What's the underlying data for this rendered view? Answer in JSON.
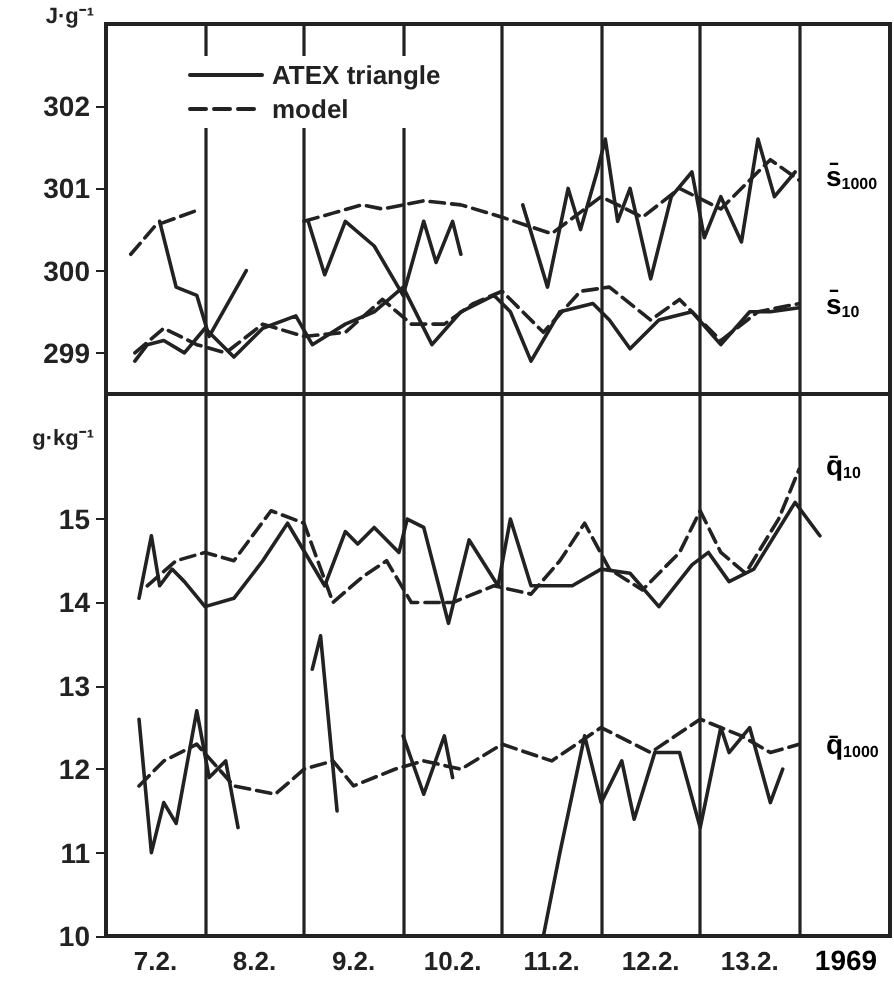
{
  "chart_data": [
    {
      "type": "line",
      "ylabel": "J·g⁻¹",
      "xlim": [
        "1969-02-07T00:00",
        "1969-02-14T22:00"
      ],
      "ylim": [
        298.5,
        303
      ],
      "yticks": [
        299,
        300,
        301,
        302
      ],
      "tick_labels": "y",
      "legend": "top left",
      "ref_lines": [
        {
          "axis": "x",
          "value": "1969-02-08"
        },
        {
          "axis": "x",
          "value": "1969-02-09"
        },
        {
          "axis": "x",
          "value": "1969-02-10"
        },
        {
          "axis": "x",
          "value": "1969-02-11"
        },
        {
          "axis": "x",
          "value": "1969-02-12"
        },
        {
          "axis": "x",
          "value": "1969-02-13"
        },
        {
          "axis": "x",
          "value": "1969-02-14"
        }
      ],
      "annotations": [
        "s̄$_{1000}$",
        "s̄$_{10}$"
      ],
      "series": [
        {
          "name": "ATEX triangle",
          "color": "#222222",
          "line_style": "solid",
          "x": [
            "1969-02-07T13:00",
            "1969-02-07T17:00",
            "1969-02-07T22:00",
            "1969-02-08T01:00",
            "1969-02-08T10:00",
            "1969-02-08T17:00",
            "1969-02-09T01:00",
            "1969-02-09T05:00",
            "1969-02-09T10:00",
            "1969-02-09T17:00",
            "1969-02-10T00:00",
            "1969-02-10T05:00",
            "1969-02-10T08:00",
            "1969-02-10T12:00",
            "1969-02-10T14:00",
            "1969-02-10T22:00",
            "1969-02-11T05:00",
            "1969-02-11T11:00",
            "1969-02-11T16:00",
            "1969-02-11T19:00",
            "1969-02-11T23:00",
            "1969-02-12T01:00",
            "1969-02-12T04:00",
            "1969-02-12T07:00",
            "1969-02-12T12:00",
            "1969-02-12T17:00",
            "1969-02-12T22:00",
            "1969-02-13T01:00",
            "1969-02-13T05:00",
            "1969-02-13T10:00",
            "1969-02-13T14:00",
            "1969-02-13T18:00",
            "1969-02-13T23:00"
          ],
          "values": [
            300.6,
            299.8,
            299.7,
            299.2,
            300.0,
            null,
            300.6,
            299.95,
            300.6,
            300.3,
            299.7,
            300.6,
            300.1,
            300.6,
            300.2,
            null,
            300.8,
            299.8,
            301.0,
            300.5,
            301.2,
            301.6,
            300.6,
            301.0,
            299.9,
            300.9,
            301.2,
            300.4,
            300.9,
            300.35,
            301.6,
            300.9,
            301.2
          ]
        },
        {
          "name": "model",
          "color": "#222222",
          "line_style": "dashed",
          "x": [
            "1969-02-07T06:00",
            "1969-02-07T12:00",
            "1969-02-07T23:00",
            "1969-02-08T12:00",
            "1969-02-09T00:00",
            "1969-02-09T07:00",
            "1969-02-09T14:00",
            "1969-02-09T19:00",
            "1969-02-10T05:00",
            "1969-02-10T14:00",
            "1969-02-11T00:00",
            "1969-02-11T12:00",
            "1969-02-12T00:00",
            "1969-02-12T10:00",
            "1969-02-12T19:00",
            "1969-02-13T05:00",
            "1969-02-13T17:00",
            "1969-02-14T00:00"
          ],
          "values": [
            300.2,
            300.55,
            300.75,
            null,
            300.6,
            300.7,
            300.8,
            300.75,
            300.85,
            300.8,
            300.65,
            300.45,
            300.9,
            300.65,
            301.0,
            300.75,
            301.35,
            301.1
          ]
        },
        {
          "color": "#222222",
          "line_style": "solid",
          "x": [
            "1969-02-07T07:00",
            "1969-02-07T10:00",
            "1969-02-07T14:00",
            "1969-02-07T19:00",
            "1969-02-08T00:00",
            "1969-02-08T07:00",
            "1969-02-08T14:00",
            "1969-02-08T22:00",
            "1969-02-09T02:00",
            "1969-02-09T10:00",
            "1969-02-09T17:00",
            "1969-02-10T00:00",
            "1969-02-10T07:00",
            "1969-02-10T14:00",
            "1969-02-10T22:00",
            "1969-02-11T02:00",
            "1969-02-11T07:00",
            "1969-02-11T14:00",
            "1969-02-11T22:00",
            "1969-02-12T02:00",
            "1969-02-12T07:00",
            "1969-02-12T14:00",
            "1969-02-12T22:00",
            "1969-02-13T05:00",
            "1969-02-13T12:00",
            "1969-02-13T17:00",
            "1969-02-14T00:00"
          ],
          "values": [
            298.9,
            299.1,
            299.15,
            299.0,
            299.3,
            298.95,
            299.3,
            299.45,
            299.1,
            299.35,
            299.5,
            299.8,
            299.1,
            299.5,
            299.7,
            299.5,
            298.9,
            299.5,
            299.6,
            299.4,
            299.05,
            299.4,
            299.5,
            299.1,
            299.5,
            299.5,
            299.55
          ]
        },
        {
          "color": "#222222",
          "line_style": "dashed",
          "x": [
            "1969-02-07T07:00",
            "1969-02-07T14:00",
            "1969-02-07T22:00",
            "1969-02-08T05:00",
            "1969-02-08T14:00",
            "1969-02-09T00:00",
            "1969-02-09T10:00",
            "1969-02-09T19:00",
            "1969-02-10T02:00",
            "1969-02-10T10:00",
            "1969-02-10T17:00",
            "1969-02-11T00:00",
            "1969-02-11T10:00",
            "1969-02-11T19:00",
            "1969-02-12T02:00",
            "1969-02-12T12:00",
            "1969-02-12T19:00",
            "1969-02-13T05:00",
            "1969-02-13T14:00",
            "1969-02-14T00:00"
          ],
          "values": [
            299.0,
            299.3,
            299.1,
            299.0,
            299.35,
            299.2,
            299.25,
            299.65,
            299.35,
            299.35,
            299.6,
            299.75,
            299.25,
            299.75,
            299.8,
            299.4,
            299.65,
            299.15,
            299.5,
            299.6
          ]
        }
      ]
    },
    {
      "type": "line",
      "ylabel": "g·kg⁻¹",
      "xlim": [
        "1969-02-07T00:00",
        "1969-02-14T22:00"
      ],
      "ylim": [
        10,
        16.5
      ],
      "yticks": [
        10,
        11,
        12,
        13,
        14,
        15
      ],
      "xticks": [
        {
          "value": "1969-02-07T12:00",
          "label": "7.2."
        },
        {
          "value": "1969-02-08T12:00",
          "label": "8.2."
        },
        {
          "value": "1969-02-09T12:00",
          "label": "9.2."
        },
        {
          "value": "1969-02-10T12:00",
          "label": "10.2."
        },
        {
          "value": "1969-02-11T12:00",
          "label": "11.2."
        },
        {
          "value": "1969-02-12T12:00",
          "label": "12.2."
        },
        {
          "value": "1969-02-13T12:00",
          "label": "13.2."
        }
      ],
      "ref_lines": [
        {
          "axis": "x",
          "value": "1969-02-08"
        },
        {
          "axis": "x",
          "value": "1969-02-09"
        },
        {
          "axis": "x",
          "value": "1969-02-10"
        },
        {
          "axis": "x",
          "value": "1969-02-11"
        },
        {
          "axis": "x",
          "value": "1969-02-12"
        },
        {
          "axis": "x",
          "value": "1969-02-13"
        },
        {
          "axis": "x",
          "value": "1969-02-14"
        }
      ],
      "annotations": [
        "q̄$_{10}$",
        "q̄$_{1000}$",
        "1969"
      ],
      "series": [
        {
          "color": "#222222",
          "line_style": "solid",
          "x": [
            "1969-02-07T08:00",
            "1969-02-07T11:00",
            "1969-02-07T13:00",
            "1969-02-07T16:00",
            "1969-02-07T19:00",
            "1969-02-08T00:00",
            "1969-02-08T07:00",
            "1969-02-08T14:00",
            "1969-02-08T20:00",
            "1969-02-09T05:00",
            "1969-02-09T10:00",
            "1969-02-09T13:00",
            "1969-02-09T17:00",
            "1969-02-09T23:00",
            "1969-02-10T01:00",
            "1969-02-10T05:00",
            "1969-02-10T11:00",
            "1969-02-10T16:00",
            "1969-02-10T23:00",
            "1969-02-11T02:00",
            "1969-02-11T07:00",
            "1969-02-11T17:00",
            "1969-02-12T00:00",
            "1969-02-12T07:00",
            "1969-02-12T14:00",
            "1969-02-12T22:00",
            "1969-02-13T02:00",
            "1969-02-13T07:00",
            "1969-02-13T13:00",
            "1969-02-13T23:00",
            "1969-02-14T05:00"
          ],
          "values": [
            14.05,
            14.8,
            14.2,
            14.4,
            14.25,
            13.95,
            14.05,
            14.5,
            14.95,
            14.2,
            14.85,
            14.7,
            14.9,
            14.6,
            15.0,
            14.9,
            13.75,
            14.75,
            14.2,
            15.0,
            14.2,
            14.2,
            14.4,
            14.35,
            13.95,
            14.45,
            14.6,
            14.25,
            14.4,
            15.2,
            14.8
          ]
        },
        {
          "color": "#222222",
          "line_style": "dashed",
          "x": [
            "1969-02-07T10:00",
            "1969-02-07T17:00",
            "1969-02-08T00:00",
            "1969-02-08T07:00",
            "1969-02-08T16:00",
            "1969-02-09T00:00",
            "1969-02-09T07:00",
            "1969-02-09T14:00",
            "1969-02-09T20:00",
            "1969-02-10T02:00",
            "1969-02-10T12:00",
            "1969-02-10T22:00",
            "1969-02-11T07:00",
            "1969-02-11T14:00",
            "1969-02-11T20:00",
            "1969-02-12T02:00",
            "1969-02-12T10:00",
            "1969-02-12T19:00",
            "1969-02-13T00:00",
            "1969-02-13T05:00",
            "1969-02-13T11:00",
            "1969-02-13T19:00",
            "1969-02-14T00:00"
          ],
          "values": [
            14.2,
            14.5,
            14.6,
            14.5,
            15.1,
            14.95,
            14.0,
            14.3,
            14.5,
            14.0,
            14.0,
            14.2,
            14.1,
            14.5,
            14.95,
            14.4,
            14.15,
            14.6,
            15.1,
            14.6,
            14.35,
            15.0,
            15.6
          ]
        },
        {
          "color": "#222222",
          "line_style": "solid",
          "x": [
            "1969-02-07T08:00",
            "1969-02-07T11:00",
            "1969-02-07T14:00",
            "1969-02-07T17:00",
            "1969-02-07T22:00",
            "1969-02-08T01:00",
            "1969-02-08T05:00",
            "1969-02-08T08:00",
            "1969-02-08T17:00",
            "1969-02-09T02:00",
            "1969-02-09T04:00",
            "1969-02-09T08:00",
            "1969-02-09T17:00",
            "1969-02-10T00:00",
            "1969-02-10T05:00",
            "1969-02-10T10:00",
            "1969-02-10T12:00",
            "1969-02-11T00:00",
            "1969-02-11T10:00",
            "1969-02-11T14:00",
            "1969-02-11T20:00",
            "1969-02-12T00:00",
            "1969-02-12T05:00",
            "1969-02-12T08:00",
            "1969-02-12T13:00",
            "1969-02-12T19:00",
            "1969-02-13T00:00",
            "1969-02-13T05:00",
            "1969-02-13T07:00",
            "1969-02-13T12:00",
            "1969-02-13T17:00",
            "1969-02-13T20:00"
          ],
          "values": [
            12.6,
            11.0,
            11.6,
            11.35,
            12.7,
            11.9,
            12.1,
            11.3,
            null,
            13.2,
            13.6,
            11.5,
            null,
            12.4,
            11.7,
            12.4,
            11.9,
            null,
            10.0,
            11.0,
            12.4,
            11.6,
            12.1,
            11.4,
            12.2,
            12.2,
            11.3,
            12.5,
            12.2,
            12.5,
            11.6,
            12.0
          ]
        },
        {
          "color": "#222222",
          "line_style": "dashed",
          "x": [
            "1969-02-07T08:00",
            "1969-02-07T14:00",
            "1969-02-07T22:00",
            "1969-02-08T07:00",
            "1969-02-08T17:00",
            "1969-02-09T00:00",
            "1969-02-09T07:00",
            "1969-02-09T12:00",
            "1969-02-09T22:00",
            "1969-02-10T05:00",
            "1969-02-10T14:00",
            "1969-02-11T00:00",
            "1969-02-11T12:00",
            "1969-02-12T00:00",
            "1969-02-12T12:00",
            "1969-02-13T00:00",
            "1969-02-13T10:00",
            "1969-02-13T17:00",
            "1969-02-14T00:00"
          ],
          "values": [
            11.8,
            12.1,
            12.3,
            11.8,
            11.7,
            12.0,
            12.1,
            11.8,
            12.0,
            12.1,
            12.0,
            12.3,
            12.1,
            12.5,
            12.2,
            12.6,
            12.4,
            12.2,
            12.3
          ]
        }
      ]
    }
  ]
}
